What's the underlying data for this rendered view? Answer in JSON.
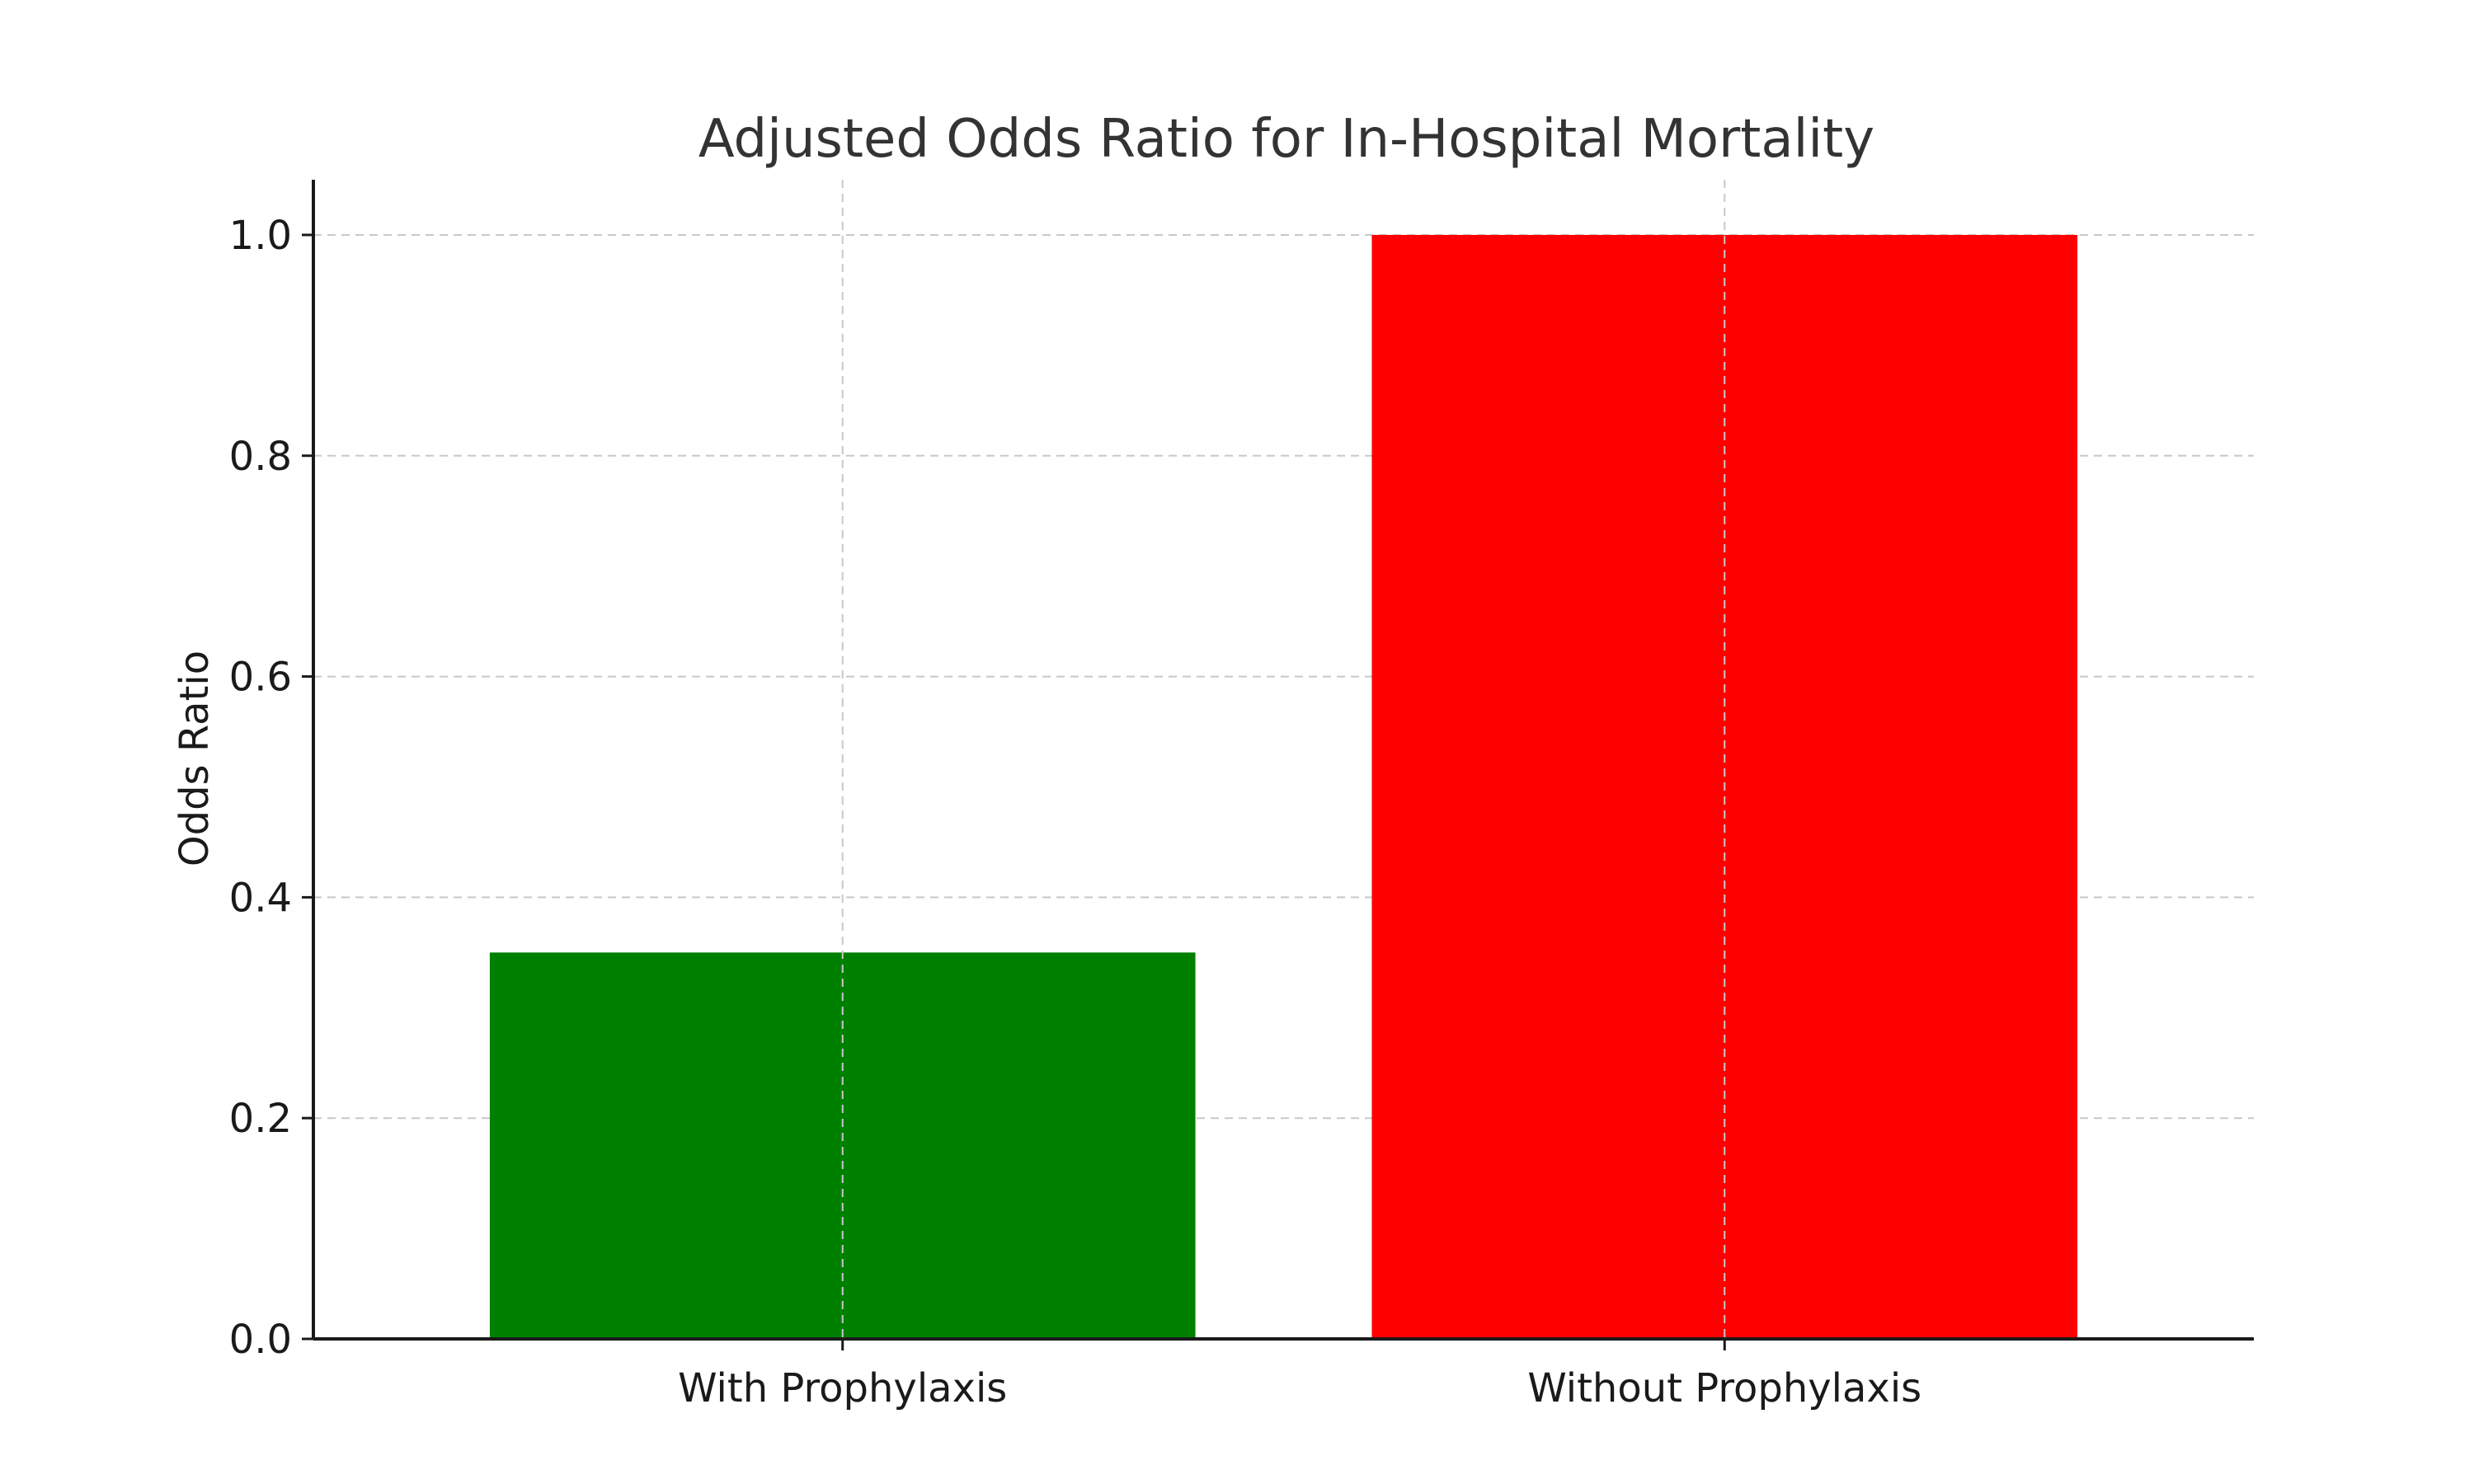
{
  "chart_data": {
    "type": "bar",
    "title": "Adjusted Odds Ratio for In-Hospital Mortality",
    "xlabel": "",
    "ylabel": "Odds Ratio",
    "categories": [
      "With Prophylaxis",
      "Without Prophylaxis"
    ],
    "values": [
      0.35,
      1.0
    ],
    "colors": [
      "#008000",
      "#ff0000"
    ],
    "ylim": [
      0,
      1.05
    ],
    "yticks": [
      0.0,
      0.2,
      0.4,
      0.6,
      0.8,
      1.0
    ],
    "ytick_labels": [
      "0.0",
      "0.2",
      "0.4",
      "0.6",
      "0.8",
      "1.0"
    ],
    "grid": true
  }
}
